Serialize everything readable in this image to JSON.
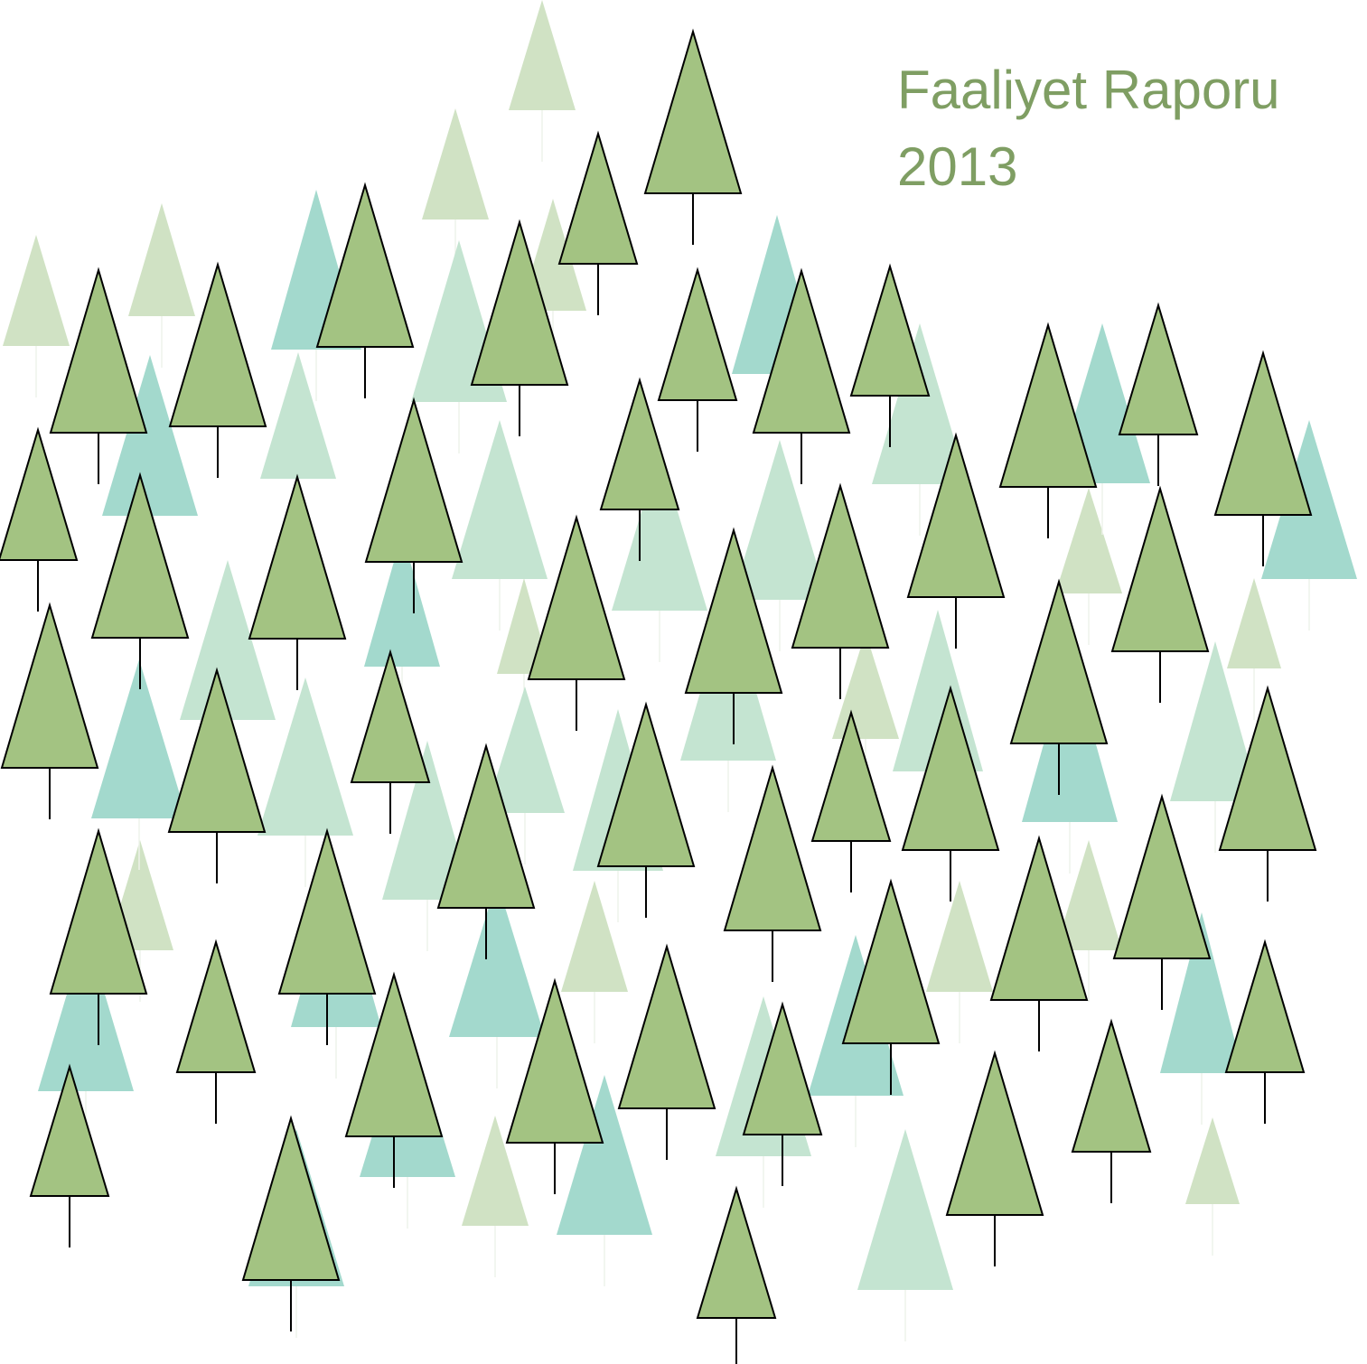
{
  "cover": {
    "title": "Faaliyet Raporu",
    "year": "2013"
  }
}
